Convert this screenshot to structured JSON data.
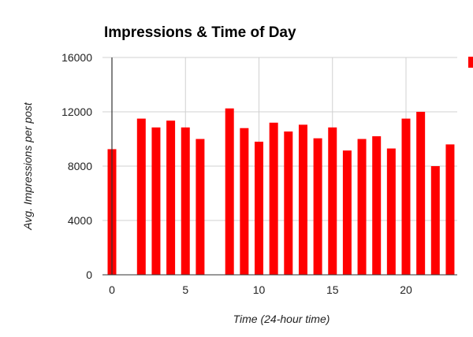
{
  "chart_data": {
    "type": "bar",
    "title": "Impressions & Time of Day",
    "xlabel": "Time (24-hour time)",
    "ylabel": "Avg. Impressions per post",
    "x": [
      0,
      1,
      2,
      3,
      4,
      5,
      6,
      7,
      8,
      9,
      10,
      11,
      12,
      13,
      14,
      15,
      16,
      17,
      18,
      19,
      20,
      21,
      22,
      23
    ],
    "values": [
      9250,
      null,
      11500,
      10850,
      11350,
      10850,
      10000,
      null,
      12250,
      10800,
      9800,
      11200,
      10550,
      11050,
      10050,
      10850,
      9150,
      10000,
      10200,
      9300,
      11500,
      12000,
      8000,
      9600
    ],
    "ylim": [
      0,
      16000
    ],
    "yticks": [
      0,
      4000,
      8000,
      12000,
      16000
    ],
    "xticks": [
      0,
      5,
      10,
      15,
      20
    ],
    "grid": true,
    "legend": "right",
    "bar_color": "#ff0000"
  }
}
